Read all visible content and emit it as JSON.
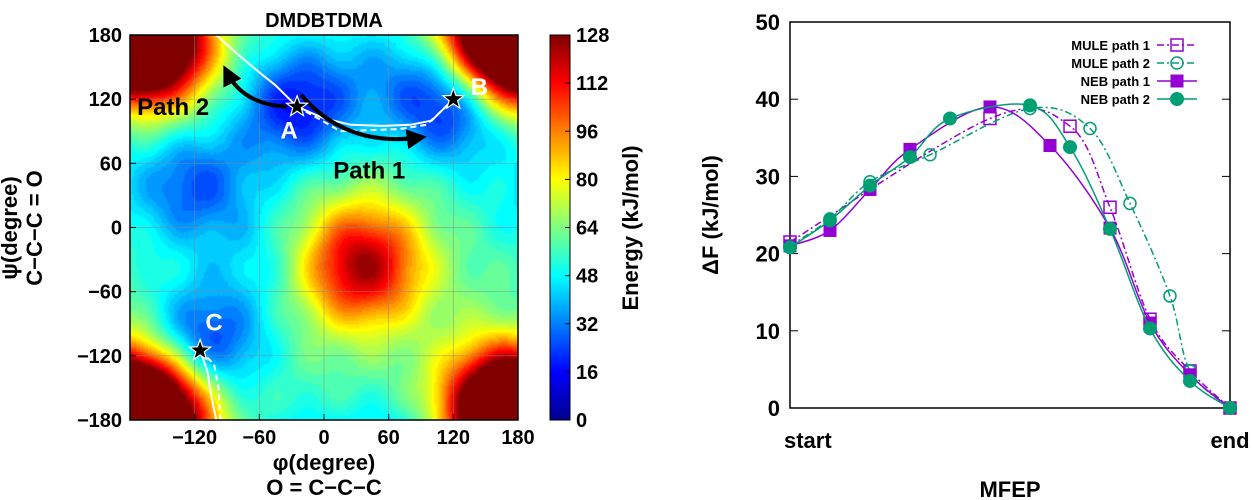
{
  "chart_data": [
    {
      "type": "heatmap",
      "title": "DMDBTDMA",
      "xlabel": [
        "φ(degree)",
        "O = C−C−C"
      ],
      "ylabel": [
        "ψ(degree)",
        "C−C−C = O"
      ],
      "xlim": [
        -180,
        180
      ],
      "ylim": [
        -180,
        180
      ],
      "xticks": [
        "−120",
        "−60",
        "0",
        "60",
        "120",
        "180"
      ],
      "yticks": [
        "180",
        "120",
        "60",
        "0",
        "−60",
        "−120",
        "−180"
      ],
      "grid": true,
      "colorbar": {
        "label": "Energy (kJ/mol)",
        "ticks": [
          "128",
          "112",
          "96",
          "80",
          "64",
          "48",
          "32",
          "16",
          "0"
        ],
        "range": [
          0,
          128
        ],
        "colors": [
          "#00008f",
          "#0000ff",
          "#0080ff",
          "#00ffff",
          "#80ff80",
          "#ffff00",
          "#ff8000",
          "#ff0000",
          "#800000"
        ]
      },
      "energy_features": [
        {
          "phi": 120,
          "psi": 120,
          "energy": 10,
          "label": "B"
        },
        {
          "phi": -25,
          "psi": 113,
          "energy": 18,
          "label": "A"
        },
        {
          "phi": -115,
          "psi": -115,
          "energy": 12,
          "label": "C"
        },
        {
          "phi": -120,
          "psi": 40,
          "energy": 28
        },
        {
          "phi": 35,
          "psi": -35,
          "energy": 125
        },
        {
          "phi": -165,
          "psi": 165,
          "energy": 118
        },
        {
          "phi": 165,
          "psi": -165,
          "energy": 118
        },
        {
          "phi": -150,
          "psi": -160,
          "energy": 115
        },
        {
          "phi": 160,
          "psi": 165,
          "energy": 110
        },
        {
          "phi": 55,
          "psi": 155,
          "energy": 48
        },
        {
          "phi": -60,
          "psi": -30,
          "energy": 48
        },
        {
          "phi": 160,
          "psi": 20,
          "energy": 55
        }
      ],
      "minima": [
        {
          "label": "A",
          "phi": -25,
          "psi": 113
        },
        {
          "label": "B",
          "phi": 120,
          "psi": 120
        },
        {
          "label": "C",
          "phi": -115,
          "psi": -115
        }
      ],
      "annotations": [
        {
          "text": "Path 2",
          "phi": -140,
          "psi": 105
        },
        {
          "text": "Path 1",
          "phi": 42,
          "psi": 46
        }
      ],
      "paths": [
        {
          "name": "MULE path",
          "style": "solid-white",
          "points": [
            [
              -100,
              180
            ],
            [
              -80,
              162
            ],
            [
              -60,
              145
            ],
            [
              -45,
              133
            ],
            [
              -25,
              113
            ],
            [
              0,
              102
            ],
            [
              25,
              96
            ],
            [
              55,
              95
            ],
            [
              80,
              96
            ],
            [
              100,
              100
            ],
            [
              112,
              112
            ],
            [
              120,
              120
            ]
          ]
        },
        {
          "name": "MULE path",
          "style": "dashed-white",
          "points": [
            [
              -25,
              113
            ],
            [
              5,
              96
            ],
            [
              15,
              90
            ],
            [
              40,
              91
            ],
            [
              70,
              92
            ],
            [
              95,
              96
            ],
            [
              110,
              110
            ],
            [
              120,
              120
            ]
          ]
        },
        {
          "name": "MULE path",
          "style": "solid-white",
          "points": [
            [
              -115,
              -115
            ],
            [
              -108,
              -135
            ],
            [
              -105,
              -155
            ],
            [
              -100,
              -180
            ]
          ]
        },
        {
          "name": "MULE path",
          "style": "dashed-white",
          "points": [
            [
              -115,
              -115
            ],
            [
              -102,
              -128
            ],
            [
              -98,
              -150
            ],
            [
              -96,
              -180
            ]
          ]
        }
      ]
    },
    {
      "type": "line",
      "xlabel": "MFEP",
      "ylabel": "ΔF (kJ/mol)",
      "ylim": [
        0,
        50
      ],
      "yticks": [
        "0",
        "10",
        "20",
        "30",
        "40",
        "50"
      ],
      "xlim": [
        0,
        1
      ],
      "xticklabels": [
        {
          "x": 0,
          "label": "start"
        },
        {
          "x": 1,
          "label": "end"
        }
      ],
      "legend_position": "top-right",
      "colors": {
        "purple": "#9400d3",
        "green": "#009e73"
      },
      "series": [
        {
          "name": "MULE path 1",
          "color": "#9400d3",
          "marker": "open-square",
          "dash": "dash-dot",
          "x": [
            0,
            0.4545,
            0.6364,
            0.7273,
            0.8182,
            0.9091,
            1
          ],
          "y": [
            21.5,
            37.5,
            36.5,
            26.0,
            11.5,
            4.8,
            0.0
          ]
        },
        {
          "name": "MULE path 2",
          "color": "#009e73",
          "marker": "open-circle",
          "dash": "dash-dot",
          "x": [
            0,
            0.0909,
            0.1818,
            0.3182,
            0.5455,
            0.6818,
            0.7727,
            0.8636,
            0.9091,
            1
          ],
          "y": [
            21.0,
            24.5,
            29.3,
            32.8,
            38.8,
            36.2,
            26.5,
            14.5,
            4.8,
            0.0
          ]
        },
        {
          "name": "NEB path 1",
          "color": "#9400d3",
          "marker": "filled-square",
          "dash": "solid",
          "x": [
            0,
            0.0909,
            0.1818,
            0.2727,
            0.4545,
            0.5909,
            0.7273,
            0.8182,
            0.9091,
            1
          ],
          "y": [
            21.0,
            23.0,
            28.3,
            33.5,
            39.0,
            34.0,
            23.3,
            11.0,
            4.3,
            0.0
          ]
        },
        {
          "name": "NEB path 2",
          "color": "#009e73",
          "marker": "filled-circle",
          "dash": "solid",
          "x": [
            0,
            0.0909,
            0.1818,
            0.2727,
            0.3636,
            0.5455,
            0.6364,
            0.7273,
            0.8182,
            0.9091,
            1
          ],
          "y": [
            20.8,
            24.3,
            28.8,
            32.5,
            37.5,
            39.2,
            33.8,
            23.2,
            10.3,
            3.5,
            0.0
          ]
        }
      ]
    }
  ]
}
